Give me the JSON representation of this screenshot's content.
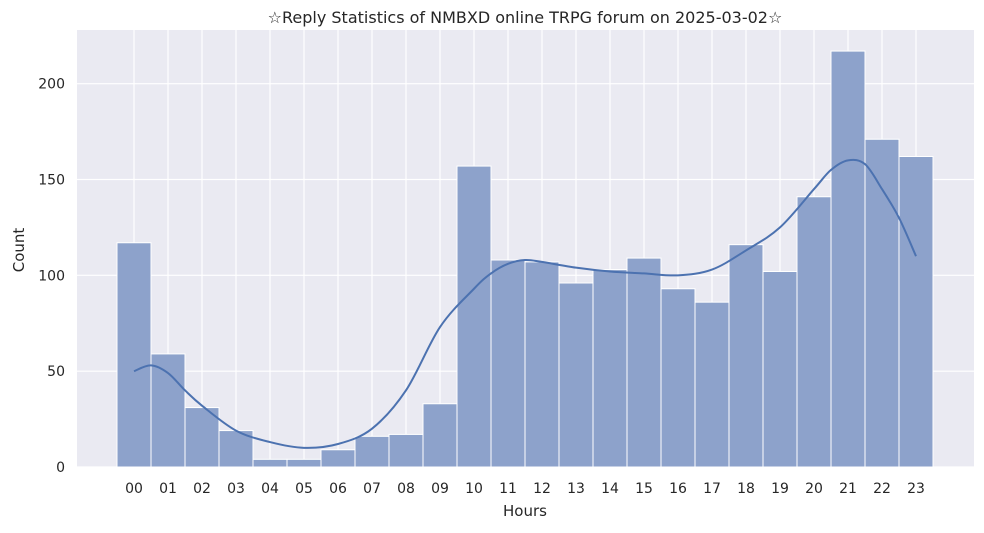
{
  "chart_data": {
    "type": "bar",
    "title": "☆Reply Statistics of NMBXD online TRPG forum on 2025-03-02☆",
    "xlabel": "Hours",
    "ylabel": "Count",
    "categories": [
      "00",
      "01",
      "02",
      "03",
      "04",
      "05",
      "06",
      "07",
      "08",
      "09",
      "10",
      "11",
      "12",
      "13",
      "14",
      "15",
      "16",
      "17",
      "18",
      "19",
      "20",
      "21",
      "22",
      "23"
    ],
    "values": [
      117,
      59,
      31,
      19,
      4,
      4,
      9,
      16,
      17,
      33,
      157,
      108,
      107,
      96,
      103,
      109,
      93,
      86,
      116,
      102,
      141,
      217,
      171,
      162
    ],
    "yticks": [
      0,
      50,
      100,
      150,
      200
    ],
    "ylim": [
      0,
      228
    ],
    "grid": true,
    "kde": {
      "x": [
        0,
        0.5,
        1,
        1.5,
        2,
        3,
        4,
        5,
        6,
        7,
        8,
        9,
        10,
        10.5,
        11,
        11.5,
        12,
        13,
        14,
        15,
        16,
        17,
        18,
        19,
        20,
        20.5,
        21,
        21.5,
        22,
        22.5,
        23
      ],
      "y": [
        50,
        53,
        49,
        40,
        32,
        19,
        13,
        10,
        12,
        20,
        40,
        73,
        93,
        101,
        106,
        108,
        107,
        104,
        102,
        101,
        100,
        103,
        113,
        125,
        145,
        155,
        160,
        158,
        145,
        130,
        110
      ]
    },
    "colors": {
      "bar": "#8da2cb",
      "line": "#4c72b0",
      "background": "#eaeaf2",
      "grid": "#ffffff"
    }
  }
}
